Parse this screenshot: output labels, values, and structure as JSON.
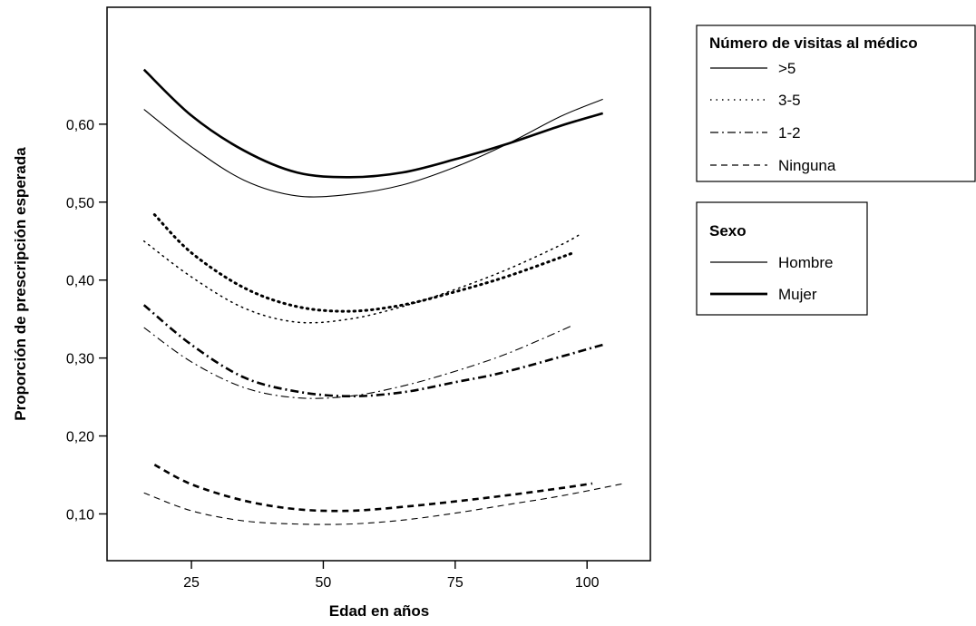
{
  "chart_data": {
    "type": "line",
    "xlabel": "Edad en años",
    "ylabel": "Proporción de prescripción esperada",
    "xlim": [
      9,
      112
    ],
    "ylim": [
      0.04,
      0.75
    ],
    "x_ticks": [
      25,
      50,
      75,
      100
    ],
    "x_tick_labels": [
      "25",
      "50",
      "75",
      "100"
    ],
    "y_ticks": [
      0.1,
      0.2,
      0.3,
      0.4,
      0.5,
      0.6
    ],
    "y_tick_labels": [
      "0,10",
      "0,20",
      "0,30",
      "0,40",
      "0,50",
      "0,60"
    ],
    "grid": false,
    "legends": [
      {
        "title": "Número de visitas al médico",
        "placement": "top-right",
        "entries": [
          {
            "label": ">5",
            "style": "solid"
          },
          {
            "label": "3-5",
            "style": "dotted"
          },
          {
            "label": "1-2",
            "style": "dashdot"
          },
          {
            "label": "Ninguna",
            "style": "dashed"
          }
        ]
      },
      {
        "title": "Sexo",
        "placement": "right",
        "entries": [
          {
            "label": "Hombre",
            "weight": "thin"
          },
          {
            "label": "Mujer",
            "weight": "thick"
          }
        ]
      }
    ],
    "series": [
      {
        "visits": ">5",
        "sex": "Hombre",
        "style": "solid",
        "weight": "thin",
        "x": [
          16,
          25,
          35,
          45,
          55,
          65,
          75,
          85,
          95,
          103
        ],
        "y": [
          0.619,
          0.571,
          0.528,
          0.508,
          0.51,
          0.522,
          0.545,
          0.575,
          0.61,
          0.632
        ]
      },
      {
        "visits": ">5",
        "sex": "Mujer",
        "style": "solid",
        "weight": "thick",
        "x": [
          16,
          25,
          35,
          45,
          55,
          65,
          75,
          85,
          95,
          103
        ],
        "y": [
          0.67,
          0.611,
          0.566,
          0.538,
          0.532,
          0.538,
          0.555,
          0.575,
          0.598,
          0.614
        ]
      },
      {
        "visits": "3-5",
        "sex": "Hombre",
        "style": "dotted",
        "weight": "thin",
        "x": [
          16,
          25,
          35,
          45,
          55,
          65,
          75,
          85,
          95,
          99
        ],
        "y": [
          0.45,
          0.404,
          0.364,
          0.346,
          0.35,
          0.366,
          0.388,
          0.414,
          0.445,
          0.46
        ]
      },
      {
        "visits": "3-5",
        "sex": "Mujer",
        "style": "dotted",
        "weight": "thick",
        "x": [
          18,
          25,
          35,
          45,
          55,
          65,
          75,
          85,
          97
        ],
        "y": [
          0.484,
          0.435,
          0.39,
          0.366,
          0.36,
          0.368,
          0.385,
          0.405,
          0.434
        ]
      },
      {
        "visits": "1-2",
        "sex": "Hombre",
        "style": "dashdot",
        "weight": "thin",
        "x": [
          16,
          25,
          35,
          45,
          55,
          65,
          75,
          85,
          97
        ],
        "y": [
          0.339,
          0.295,
          0.262,
          0.249,
          0.251,
          0.264,
          0.283,
          0.306,
          0.341
        ]
      },
      {
        "visits": "1-2",
        "sex": "Mujer",
        "style": "dashdot",
        "weight": "thick",
        "x": [
          16,
          25,
          35,
          45,
          55,
          65,
          75,
          85,
          103
        ],
        "y": [
          0.368,
          0.317,
          0.275,
          0.257,
          0.251,
          0.256,
          0.269,
          0.283,
          0.317
        ]
      },
      {
        "visits": "Ninguna",
        "sex": "Hombre",
        "style": "dashed",
        "weight": "thin",
        "x": [
          16,
          25,
          35,
          45,
          55,
          65,
          75,
          85,
          95,
          107
        ],
        "y": [
          0.127,
          0.104,
          0.091,
          0.087,
          0.087,
          0.092,
          0.101,
          0.112,
          0.123,
          0.139
        ]
      },
      {
        "visits": "Ninguna",
        "sex": "Mujer",
        "style": "dashed",
        "weight": "thick",
        "x": [
          18,
          25,
          35,
          45,
          55,
          65,
          75,
          85,
          95,
          101
        ],
        "y": [
          0.163,
          0.138,
          0.117,
          0.106,
          0.104,
          0.109,
          0.116,
          0.124,
          0.133,
          0.139
        ]
      }
    ]
  }
}
